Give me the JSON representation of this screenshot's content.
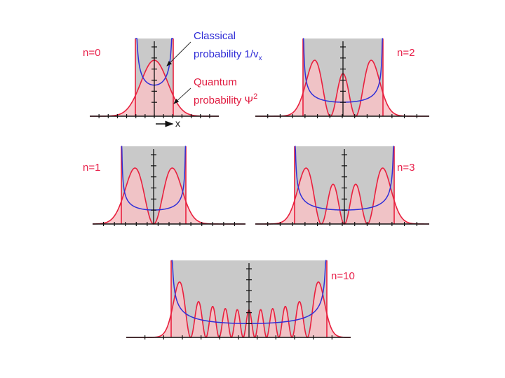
{
  "colors": {
    "classical_region": "#c9c9c9",
    "quantum_fill": "#f7c2c6",
    "quantum_line": "#e8203e",
    "classical_line": "#2f2fd8",
    "axis": "#111111"
  },
  "annotations": {
    "classical_line1": "Classical",
    "classical_line2_prefix": "probability 1/v",
    "classical_line2_sub": "x",
    "quantum_line1": "Quantum",
    "quantum_line2_prefix": "probability Ψ",
    "quantum_line2_sup": "2",
    "x_axis_label": "x"
  },
  "panels": [
    {
      "label": "n=0",
      "n": 0
    },
    {
      "label": "n=2",
      "n": 2
    },
    {
      "label": "n=1",
      "n": 1
    },
    {
      "label": "n=3",
      "n": 3
    },
    {
      "label": "n=10",
      "n": 10
    }
  ]
}
